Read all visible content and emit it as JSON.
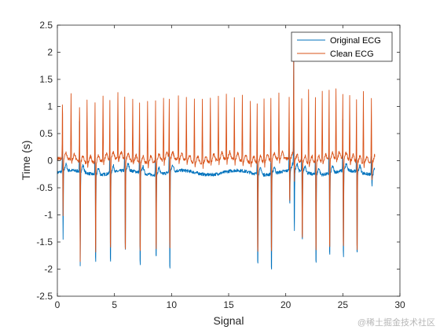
{
  "chart_data": {
    "type": "line",
    "xlabel": "Signal",
    "ylabel": "Time (s)",
    "xlim": [
      0,
      30
    ],
    "ylim": [
      -2.5,
      2.5
    ],
    "xticks": [
      0,
      5,
      10,
      15,
      20,
      25,
      30
    ],
    "yticks": [
      -2.5,
      -2,
      -1.5,
      -1,
      -0.5,
      0,
      0.5,
      1,
      1.5,
      2,
      2.5
    ],
    "ytick_labels": [
      "-2.5",
      "-2",
      "-1.5",
      "-1",
      "-0.5",
      "0",
      "0.5",
      "1",
      "1.5",
      "2",
      "2.5"
    ],
    "grid": false,
    "legend_position": "top-right",
    "signal_x_range": [
      0,
      27.8
    ],
    "series": [
      {
        "name": "Original ECG",
        "color": "#0072BD",
        "baseline": -0.22,
        "r_peak_times": [
          0.45,
          1.95,
          3.3,
          4.6,
          5.9,
          7.2,
          8.6,
          9.8,
          17.5,
          18.7,
          20.3,
          21.4,
          22.6,
          23.8,
          25.0,
          26.2,
          27.5
        ],
        "r_peak_values": [
          0.4,
          0.85,
          0.6,
          0.6,
          0.6,
          0.55,
          0.4,
          0.35,
          0.15,
          0.1,
          0.2,
          0.2,
          0.3,
          0.7,
          0.8,
          0.25,
          0.1
        ],
        "s_trough_values": [
          -1.5,
          -2.0,
          -2.05,
          -2.1,
          -1.9,
          -2.15,
          -1.95,
          -2.25,
          -2.05,
          -2.2,
          -0.9,
          -1.65,
          -2.05,
          -1.95,
          -2.0,
          -1.9,
          -0.45
        ],
        "extra_beats": [
          {
            "t": 20.7,
            "peak": 2.1,
            "trough": -1.5
          }
        ]
      },
      {
        "name": "Clean ECG",
        "color": "#D95319",
        "baseline": 0.0,
        "r_peak_times": [
          0.45,
          1.2,
          1.95,
          2.6,
          3.3,
          4.0,
          4.6,
          5.3,
          5.9,
          6.6,
          7.2,
          7.9,
          8.6,
          9.3,
          9.8,
          10.6,
          11.3,
          12.0,
          12.7,
          13.4,
          14.1,
          14.8,
          15.5,
          16.2,
          16.9,
          17.5,
          18.1,
          18.7,
          19.4,
          20.3,
          20.7,
          21.4,
          22.0,
          22.6,
          23.2,
          23.8,
          24.4,
          25.0,
          25.6,
          26.2,
          26.8,
          27.5
        ],
        "r_peak_values": [
          1.15,
          1.2,
          1.2,
          1.15,
          1.2,
          1.2,
          1.15,
          1.2,
          1.2,
          1.15,
          1.2,
          1.15,
          1.2,
          1.15,
          1.2,
          1.15,
          1.15,
          1.2,
          1.15,
          1.2,
          1.15,
          1.2,
          1.15,
          1.2,
          1.15,
          1.2,
          1.15,
          1.25,
          1.2,
          1.2,
          1.9,
          1.25,
          1.35,
          1.3,
          1.3,
          1.35,
          1.3,
          1.3,
          1.2,
          1.25,
          1.3,
          1.2
        ],
        "s_trough_values": [
          -1.1,
          -0.1,
          -1.85,
          -0.1,
          -1.85,
          -0.1,
          -1.85,
          -0.1,
          -1.85,
          -0.1,
          -1.85,
          -0.1,
          -1.85,
          -0.1,
          -1.85,
          -0.1,
          -0.1,
          -0.1,
          -0.1,
          -0.1,
          -0.1,
          -0.1,
          -0.1,
          -0.1,
          -0.1,
          -1.85,
          -0.1,
          -1.9,
          -0.1,
          -0.9,
          -0.5,
          -1.6,
          -0.1,
          -1.85,
          -0.1,
          -1.85,
          -0.1,
          -1.85,
          -0.1,
          -1.85,
          -0.1,
          -0.4
        ]
      }
    ]
  },
  "watermark": "@稀土掘金技术社区"
}
